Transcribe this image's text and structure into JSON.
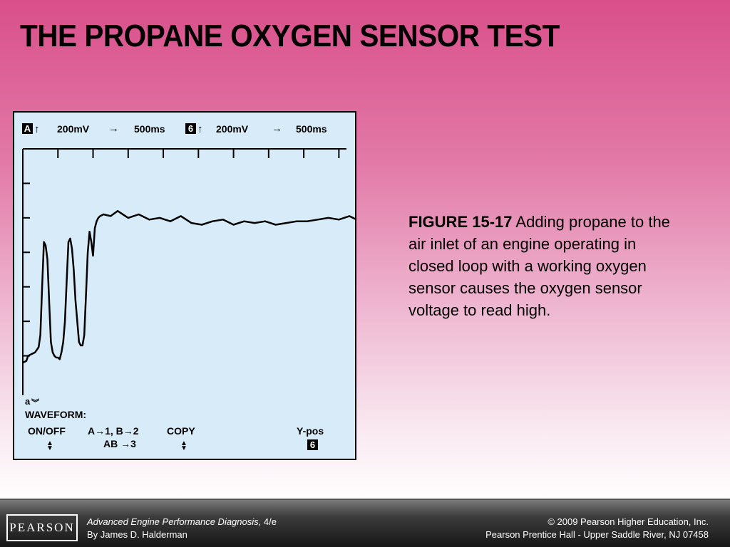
{
  "slide": {
    "title": "THE PROPANE OXYGEN SENSOR TEST"
  },
  "caption": {
    "figure_label": "FIGURE 15-17",
    "text": "Adding propane to the air inlet of an engine operating in closed loop with a working oxygen sensor causes the oxygen sensor voltage to read high."
  },
  "scope": {
    "channel_a": {
      "label": "A",
      "volts": "200mV",
      "time": "500ms"
    },
    "channel_b": {
      "label": "6",
      "volts": "200mV",
      "time": "500ms"
    },
    "line_a": "a",
    "waveform_label": "WAVEFORM:",
    "softkeys": {
      "on_off": "ON/OFF",
      "assign_top": "A→1, B→2",
      "assign_bottom": "AB →3",
      "copy": "COPY",
      "ypos": "Y-pos",
      "ypos_value": "6"
    }
  },
  "chart_data": {
    "type": "line",
    "title": "",
    "xlabel": "",
    "ylabel": "",
    "x_units": "divisions",
    "y_units": "divisions",
    "xlim": [
      0,
      9.5
    ],
    "ylim": [
      0,
      7
    ],
    "grid": false,
    "series": [
      {
        "name": "",
        "x": [
          0.0,
          0.1,
          0.15,
          0.25,
          0.35,
          0.45,
          0.5,
          0.55,
          0.6,
          0.65,
          0.7,
          0.75,
          0.8,
          0.85,
          0.9,
          0.95,
          1.0,
          1.05,
          1.1,
          1.15,
          1.2,
          1.25,
          1.3,
          1.35,
          1.4,
          1.45,
          1.5,
          1.55,
          1.6,
          1.65,
          1.7,
          1.75,
          1.8,
          1.85,
          1.9,
          1.95,
          2.0,
          2.05,
          2.1,
          2.15,
          2.2,
          2.3,
          2.5,
          2.7,
          3.0,
          3.3,
          3.6,
          3.9,
          4.2,
          4.5,
          4.8,
          5.1,
          5.4,
          5.7,
          6.0,
          6.3,
          6.6,
          6.9,
          7.2,
          7.5,
          7.8,
          8.1,
          8.4,
          8.7,
          9.0,
          9.3,
          9.5
        ],
        "y": [
          0.8,
          0.85,
          1.0,
          1.05,
          1.1,
          1.25,
          1.6,
          3.0,
          4.3,
          4.2,
          3.8,
          2.6,
          1.4,
          1.1,
          1.0,
          0.95,
          0.95,
          0.9,
          1.1,
          1.4,
          2.0,
          3.2,
          4.3,
          4.4,
          4.1,
          3.5,
          2.6,
          2.0,
          1.4,
          1.3,
          1.3,
          1.6,
          2.8,
          4.0,
          4.6,
          4.3,
          3.9,
          4.7,
          4.9,
          5.0,
          5.05,
          5.1,
          5.05,
          5.2,
          5.0,
          5.1,
          4.95,
          5.0,
          4.9,
          5.05,
          4.85,
          4.8,
          4.9,
          4.95,
          4.8,
          4.9,
          4.85,
          4.9,
          4.8,
          4.85,
          4.9,
          4.9,
          4.95,
          5.0,
          4.95,
          5.05,
          4.95
        ]
      }
    ]
  },
  "footer": {
    "logo": "PEARSON",
    "book_title": "Advanced Engine Performance Diagnosis,",
    "edition": " 4/e",
    "author": "By James D. Halderman",
    "copyright": "© 2009 Pearson Higher Education, Inc.",
    "publisher": "Pearson Prentice Hall - Upper Saddle River, NJ 07458"
  }
}
